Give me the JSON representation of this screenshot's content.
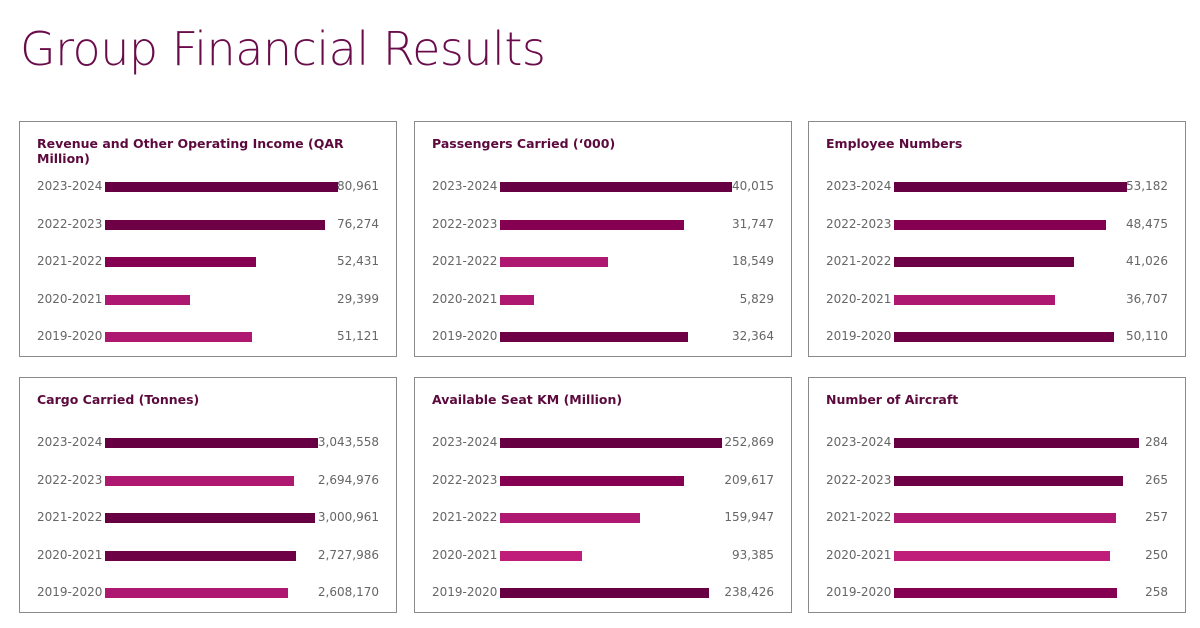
{
  "page_title": "Group Financial Results",
  "chart_data": [
    {
      "type": "bar",
      "title": "Revenue and Other Operating Income (QAR Million)",
      "categories": [
        "2023-2024",
        "2022-2023",
        "2021-2022",
        "2020-2021",
        "2019-2020"
      ],
      "values": [
        80961,
        76274,
        52431,
        29399,
        51121
      ],
      "labels": [
        "80,961",
        "76,274",
        "52,431",
        "29,399",
        "51,121"
      ],
      "colors": [
        "#660042",
        "#6e0046",
        "#850050",
        "#ae1870",
        "#ae1870"
      ]
    },
    {
      "type": "bar",
      "title": "Passengers Carried (‘000)",
      "categories": [
        "2023-2024",
        "2022-2023",
        "2021-2022",
        "2020-2021",
        "2019-2020"
      ],
      "values": [
        40015,
        31747,
        18549,
        5829,
        32364
      ],
      "labels": [
        "40,015",
        "31,747",
        "18,549",
        "5,829",
        "32,364"
      ],
      "colors": [
        "#660042",
        "#850050",
        "#ae1870",
        "#ae1870",
        "#6e0046"
      ]
    },
    {
      "type": "bar",
      "title": "Employee Numbers",
      "categories": [
        "2023-2024",
        "2022-2023",
        "2021-2022",
        "2020-2021",
        "2019-2020"
      ],
      "values": [
        53182,
        48475,
        41026,
        36707,
        50110
      ],
      "labels": [
        "53,182",
        "48,475",
        "41,026",
        "36,707",
        "50,110"
      ],
      "colors": [
        "#660042",
        "#850050",
        "#6e0046",
        "#ae1870",
        "#6e0046"
      ]
    },
    {
      "type": "bar",
      "title": "Cargo Carried (Tonnes)",
      "categories": [
        "2023-2024",
        "2022-2023",
        "2021-2022",
        "2020-2021",
        "2019-2020"
      ],
      "values": [
        3043558,
        2694976,
        3000961,
        2727986,
        2608170
      ],
      "labels": [
        "3,043,558",
        "2,694,976",
        "3,000,961",
        "2,727,986",
        "2,608,170"
      ],
      "colors": [
        "#660042",
        "#ae1870",
        "#660042",
        "#6e0046",
        "#ae1870"
      ]
    },
    {
      "type": "bar",
      "title": "Available Seat KM (Million)",
      "categories": [
        "2023-2024",
        "2022-2023",
        "2021-2022",
        "2020-2021",
        "2019-2020"
      ],
      "values": [
        252869,
        209617,
        159947,
        93385,
        238426
      ],
      "labels": [
        "252,869",
        "209,617",
        "159,947",
        "93,385",
        "238,426"
      ],
      "colors": [
        "#660042",
        "#850050",
        "#ae1870",
        "#c01d7a",
        "#660042"
      ]
    },
    {
      "type": "bar",
      "title": "Number of Aircraft",
      "categories": [
        "2023-2024",
        "2022-2023",
        "2021-2022",
        "2020-2021",
        "2019-2020"
      ],
      "values": [
        284,
        265,
        257,
        250,
        258
      ],
      "labels": [
        "284",
        "265",
        "257",
        "250",
        "258"
      ],
      "colors": [
        "#660042",
        "#6e0046",
        "#ae1870",
        "#c01d7a",
        "#850050"
      ]
    }
  ]
}
